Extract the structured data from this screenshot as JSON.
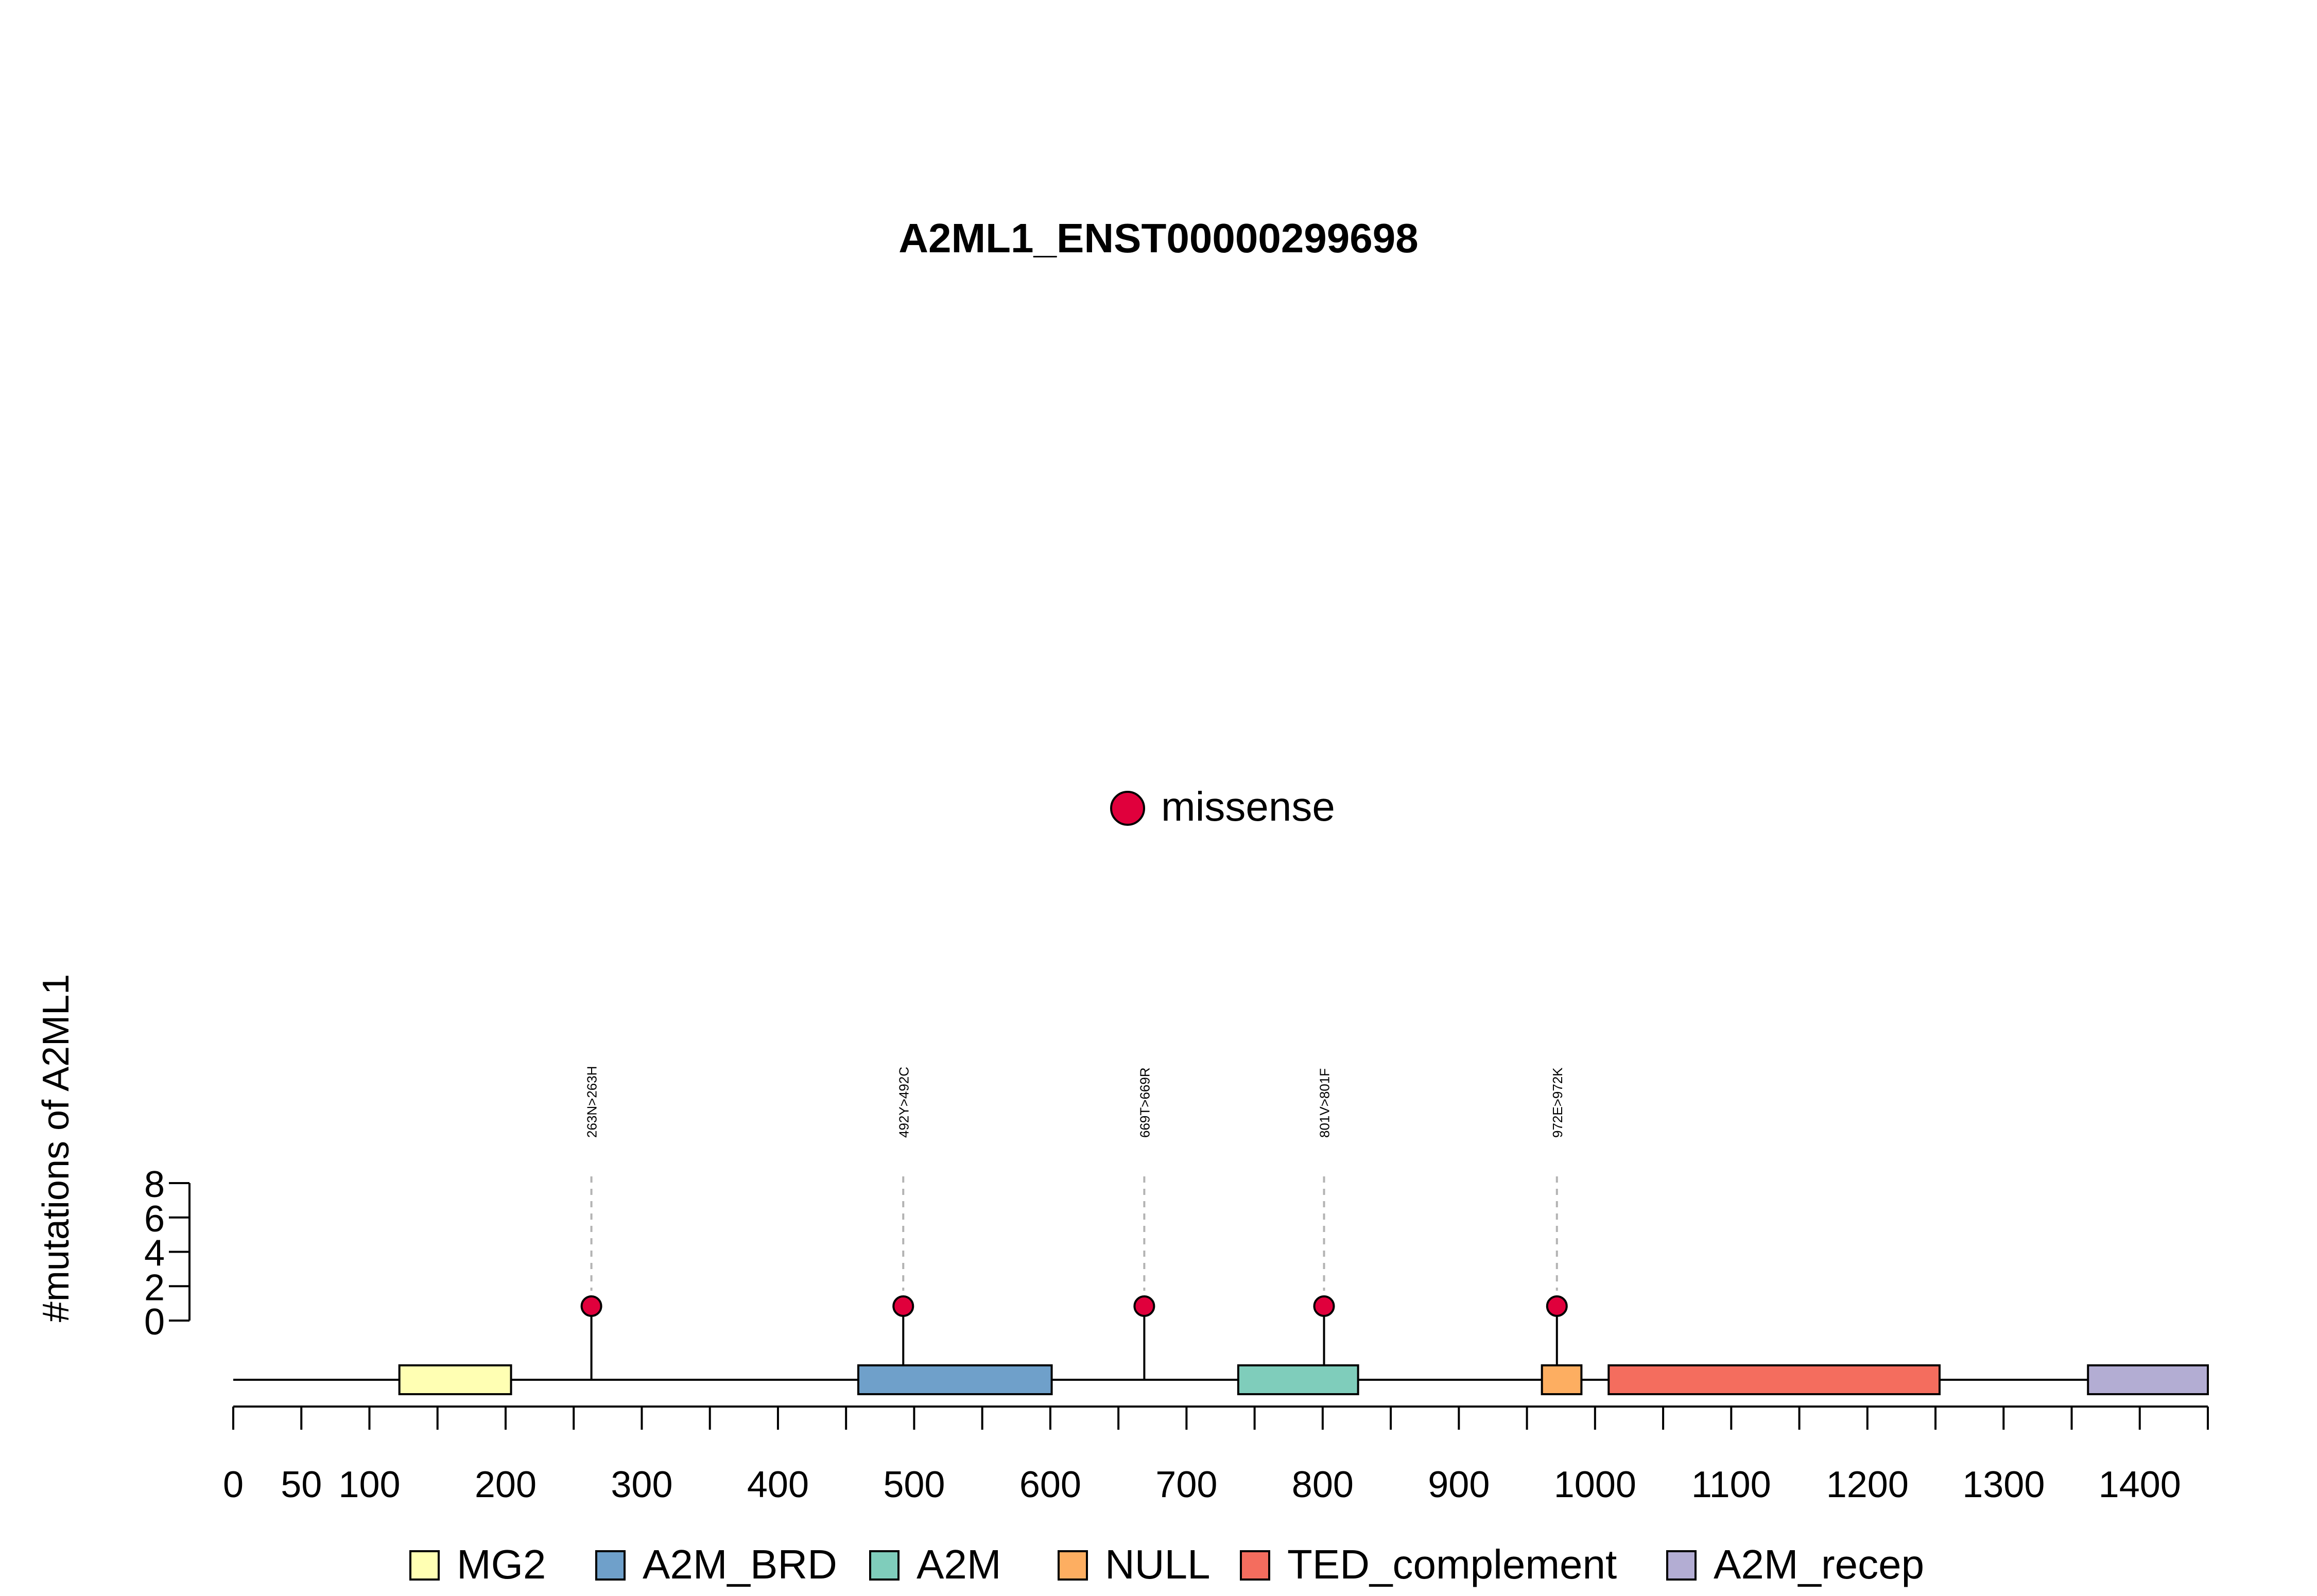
{
  "chart_data": {
    "type": "lollipop",
    "title": "A2ML1_ENST00000299698",
    "ylabel": "#mutations of A2ML1",
    "y_ticks": [
      "0",
      "2",
      "4",
      "6",
      "8"
    ],
    "ylim": [
      0,
      8
    ],
    "x_ticks": [
      0,
      50,
      100,
      150,
      200,
      250,
      300,
      350,
      400,
      450,
      500,
      550,
      600,
      650,
      700,
      750,
      800,
      850,
      900,
      950,
      1000,
      1050,
      1100,
      1150,
      1200,
      1250,
      1300,
      1350,
      1400,
      1450
    ],
    "x_tick_labels": [
      "0",
      "50",
      "100",
      "",
      "200",
      "",
      "300",
      "",
      "400",
      "",
      "500",
      "",
      "600",
      "",
      "700",
      "",
      "800",
      "",
      "900",
      "",
      "1000",
      "",
      "1100",
      "",
      "1200",
      "",
      "1300",
      "",
      "1400",
      ""
    ],
    "xlim": [
      0,
      1450
    ],
    "protein_length": 1450,
    "legend_mutation": {
      "label": "missense",
      "color": "#E0003C"
    },
    "mutations": [
      {
        "position": 263,
        "count": 1,
        "label": "263N>263H",
        "type": "missense"
      },
      {
        "position": 492,
        "count": 1,
        "label": "492Y>492C",
        "type": "missense"
      },
      {
        "position": 669,
        "count": 1,
        "label": "669T>669R",
        "type": "missense"
      },
      {
        "position": 801,
        "count": 1,
        "label": "801V>801F",
        "type": "missense"
      },
      {
        "position": 972,
        "count": 1,
        "label": "972E>972K",
        "type": "missense"
      }
    ],
    "domains": [
      {
        "name": "MG2",
        "start": 122,
        "end": 204,
        "color": "#FFFFB3"
      },
      {
        "name": "A2M_BRD",
        "start": 459,
        "end": 601,
        "color": "#6FA0CA"
      },
      {
        "name": "A2M",
        "start": 738,
        "end": 826,
        "color": "#7FCDBB"
      },
      {
        "name": "NULL",
        "start": 961,
        "end": 990,
        "color": "#FDAE61"
      },
      {
        "name": "TED_complement",
        "start": 1010,
        "end": 1253,
        "color": "#F46D5E"
      },
      {
        "name": "A2M_recep",
        "start": 1362,
        "end": 1450,
        "color": "#B3ADD3"
      }
    ]
  }
}
